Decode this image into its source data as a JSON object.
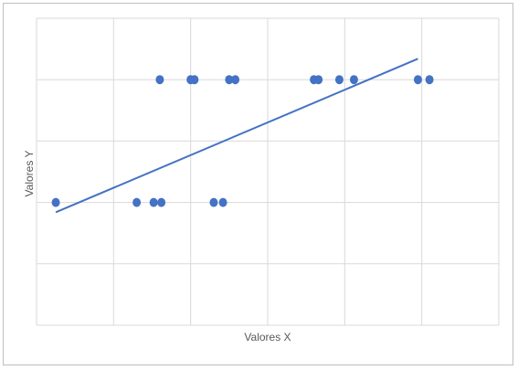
{
  "chart_data": {
    "type": "scatter",
    "title": "",
    "xlabel": "Valores X",
    "ylabel": "Valores Y",
    "xlim": [
      0,
      6
    ],
    "ylim": [
      0,
      2.5
    ],
    "grid": true,
    "legend": "none",
    "series": [
      {
        "x": [
          0.25,
          1.3,
          1.52,
          1.62,
          2.0,
          2.3,
          2.42,
          2.58,
          1.6,
          2.05,
          2.5,
          3.6,
          3.66,
          3.93,
          4.12,
          4.95,
          5.1
        ],
        "y": [
          1,
          1,
          1,
          1,
          2,
          1,
          1,
          2,
          2,
          2,
          2,
          2,
          2,
          2,
          2,
          2,
          2
        ],
        "color": "#4472c4"
      }
    ],
    "trendline": {
      "type": "linear",
      "x": [
        0.25,
        4.95
      ],
      "y": [
        0.92,
        2.17
      ],
      "color": "#4472c4"
    }
  }
}
